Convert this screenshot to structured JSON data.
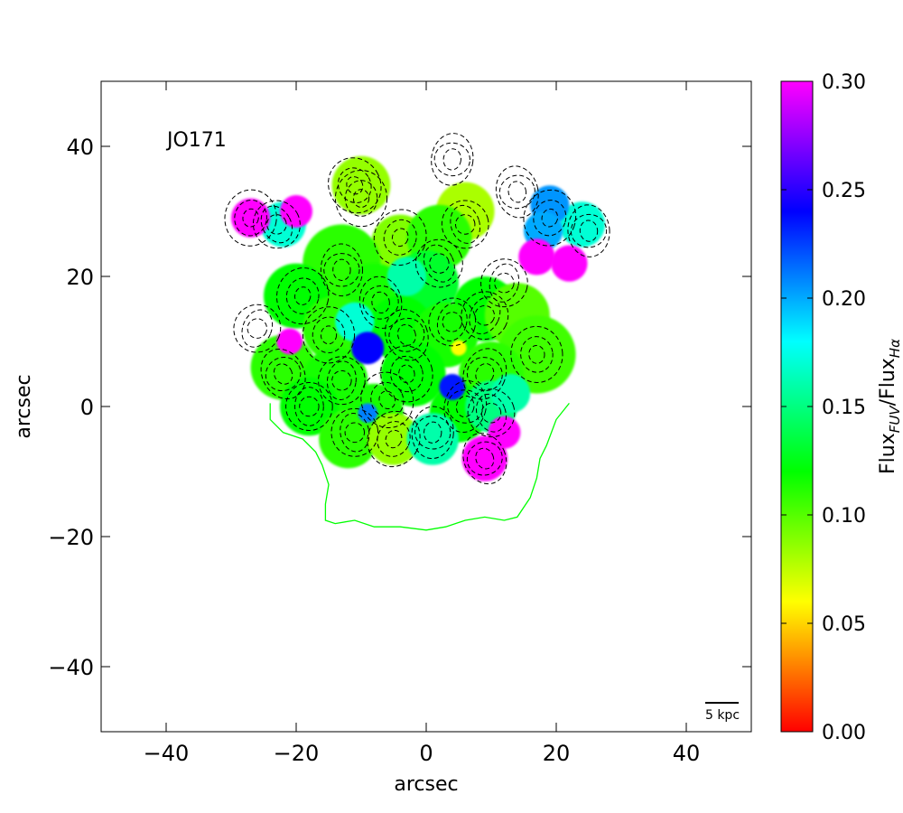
{
  "chart_data": {
    "type": "heatmap",
    "annotation": "JO171",
    "xlabel": "arcsec",
    "ylabel": "arcsec",
    "xlim": [
      -50,
      50
    ],
    "ylim": [
      -50,
      50
    ],
    "x_ticks": [
      -40,
      -20,
      0,
      20,
      40
    ],
    "y_ticks": [
      -40,
      -20,
      0,
      20,
      40
    ],
    "x_tick_labels": [
      "−40",
      "−20",
      "0",
      "20",
      "40"
    ],
    "y_tick_labels": [
      "−40",
      "−20",
      "0",
      "20",
      "40"
    ],
    "scale_bar_label": "5 kpc",
    "colorbar": {
      "label_main": "Flux",
      "label_sub1": "FUV",
      "label_sep": "/Flux",
      "label_sub2": "Hα",
      "vmin": 0.0,
      "vmax": 0.3,
      "ticks": [
        0.0,
        0.05,
        0.1,
        0.15,
        0.2,
        0.25,
        0.3
      ],
      "tick_labels": [
        "0.00",
        "0.05",
        "0.10",
        "0.15",
        "0.20",
        "0.25",
        "0.30"
      ],
      "colormap": [
        "#ff0000",
        "#ffff00",
        "#00ff00",
        "#00ffff",
        "#0000ff",
        "#ff00ff"
      ]
    },
    "stellar_outline_color": "#00ff00",
    "stellar_outline": [
      [
        -24,
        0.5
      ],
      [
        -24,
        -2
      ],
      [
        -22,
        -4
      ],
      [
        -19,
        -5
      ],
      [
        -17,
        -7
      ],
      [
        -16,
        -9
      ],
      [
        -15,
        -12
      ],
      [
        -15.5,
        -15
      ],
      [
        -15.5,
        -17.5
      ],
      [
        -14,
        -18
      ],
      [
        -11,
        -17.5
      ],
      [
        -8,
        -18.5
      ],
      [
        -4,
        -18.5
      ],
      [
        0,
        -19
      ],
      [
        3,
        -18.5
      ],
      [
        6,
        -17.5
      ],
      [
        9,
        -17
      ],
      [
        12,
        -17.5
      ],
      [
        14,
        -17
      ],
      [
        16,
        -14
      ],
      [
        17,
        -11
      ],
      [
        17.5,
        -8
      ],
      [
        18.5,
        -6
      ],
      [
        20,
        -2
      ],
      [
        22,
        0.5
      ]
    ],
    "ratio_blobs": [
      {
        "x": -10,
        "y": 34,
        "r": 4.5,
        "value": 0.085
      },
      {
        "x": 6,
        "y": 30,
        "r": 4.5,
        "value": 0.08
      },
      {
        "x": -4,
        "y": 25,
        "r": 4.5,
        "value": 0.09
      },
      {
        "x": -13,
        "y": 22,
        "r": 6,
        "value": 0.11
      },
      {
        "x": 2,
        "y": 26,
        "r": 5,
        "value": 0.11
      },
      {
        "x": -20,
        "y": 17,
        "r": 5,
        "value": 0.12
      },
      {
        "x": -8,
        "y": 17,
        "r": 5,
        "value": 0.115
      },
      {
        "x": 0,
        "y": 19,
        "r": 5,
        "value": 0.13
      },
      {
        "x": 9,
        "y": 15,
        "r": 5,
        "value": 0.12
      },
      {
        "x": 14,
        "y": 14,
        "r": 5,
        "value": 0.1
      },
      {
        "x": -14,
        "y": 12,
        "r": 5,
        "value": 0.11
      },
      {
        "x": -4,
        "y": 12,
        "r": 5,
        "value": 0.12
      },
      {
        "x": 3,
        "y": 11,
        "r": 5,
        "value": 0.115
      },
      {
        "x": 17,
        "y": 8,
        "r": 6,
        "value": 0.105
      },
      {
        "x": -22,
        "y": 6,
        "r": 5,
        "value": 0.11
      },
      {
        "x": -14,
        "y": 4,
        "r": 5,
        "value": 0.115
      },
      {
        "x": -2,
        "y": 5,
        "r": 5,
        "value": 0.12
      },
      {
        "x": 10,
        "y": 5,
        "r": 5,
        "value": 0.11
      },
      {
        "x": -18,
        "y": 0,
        "r": 4.5,
        "value": 0.12
      },
      {
        "x": -8,
        "y": -1,
        "r": 4.5,
        "value": 0.115
      },
      {
        "x": 5,
        "y": -1,
        "r": 4.5,
        "value": 0.12
      },
      {
        "x": -12,
        "y": -5,
        "r": 4.5,
        "value": 0.11
      },
      {
        "x": -5,
        "y": -5,
        "r": 4,
        "value": 0.085
      },
      {
        "x": 1,
        "y": -5,
        "r": 4,
        "value": 0.16
      },
      {
        "x": 10,
        "y": 0,
        "r": 4,
        "value": 0.15
      },
      {
        "x": 13,
        "y": 2,
        "r": 3,
        "value": 0.16
      },
      {
        "x": -3,
        "y": 20,
        "r": 3,
        "value": 0.16
      },
      {
        "x": -11,
        "y": 13,
        "r": 3,
        "value": 0.17
      },
      {
        "x": -22,
        "y": 28,
        "r": 3.5,
        "value": 0.17
      },
      {
        "x": 24,
        "y": 28,
        "r": 3.5,
        "value": 0.17
      },
      {
        "x": -9,
        "y": 9,
        "r": 2.5,
        "value": 0.24
      },
      {
        "x": 4,
        "y": 3,
        "r": 2,
        "value": 0.235
      },
      {
        "x": -9,
        "y": -1,
        "r": 1.5,
        "value": 0.21
      },
      {
        "x": 19,
        "y": 31,
        "r": 3,
        "value": 0.205
      },
      {
        "x": 18,
        "y": 27,
        "r": 3,
        "value": 0.2
      },
      {
        "x": -27,
        "y": 29,
        "r": 3,
        "value": 0.3
      },
      {
        "x": -20,
        "y": 30,
        "r": 2.5,
        "value": 0.3
      },
      {
        "x": -21,
        "y": 10,
        "r": 2,
        "value": 0.3
      },
      {
        "x": 9,
        "y": -8,
        "r": 3.5,
        "value": 0.3
      },
      {
        "x": 12,
        "y": -4,
        "r": 2.5,
        "value": 0.3
      },
      {
        "x": 17,
        "y": 23,
        "r": 2.8,
        "value": 0.3
      },
      {
        "x": 22,
        "y": 22,
        "r": 2.8,
        "value": 0.3
      },
      {
        "x": 5,
        "y": 9,
        "r": 1.2,
        "value": 0.06
      }
    ],
    "contour_centers": [
      {
        "x": -11,
        "y": 34
      },
      {
        "x": 4,
        "y": 38
      },
      {
        "x": 6,
        "y": 28
      },
      {
        "x": -4,
        "y": 26
      },
      {
        "x": -13,
        "y": 21
      },
      {
        "x": 2,
        "y": 22
      },
      {
        "x": -19,
        "y": 17
      },
      {
        "x": -7,
        "y": 16
      },
      {
        "x": 9,
        "y": 14
      },
      {
        "x": -15,
        "y": 11
      },
      {
        "x": -3,
        "y": 11
      },
      {
        "x": 4,
        "y": 13
      },
      {
        "x": 17,
        "y": 8
      },
      {
        "x": -22,
        "y": 5
      },
      {
        "x": -13,
        "y": 4
      },
      {
        "x": -3,
        "y": 5
      },
      {
        "x": 9,
        "y": 5
      },
      {
        "x": -18,
        "y": 0
      },
      {
        "x": -6,
        "y": 1
      },
      {
        "x": 6,
        "y": 0
      },
      {
        "x": -11,
        "y": -4
      },
      {
        "x": -5,
        "y": -5
      },
      {
        "x": 1,
        "y": -4
      },
      {
        "x": 10,
        "y": -1
      },
      {
        "x": 19,
        "y": 29
      },
      {
        "x": 25,
        "y": 27
      },
      {
        "x": -23,
        "y": 28
      },
      {
        "x": -27,
        "y": 29
      },
      {
        "x": 14,
        "y": 33
      },
      {
        "x": -26,
        "y": 12
      },
      {
        "x": -10,
        "y": 32
      },
      {
        "x": 9,
        "y": -8
      },
      {
        "x": 12,
        "y": 19
      }
    ]
  }
}
